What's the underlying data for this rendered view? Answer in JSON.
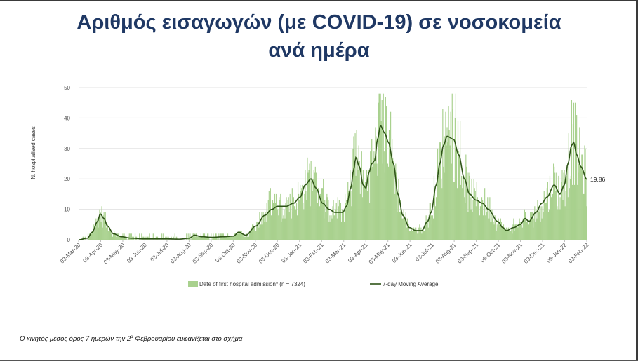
{
  "title_line1": "Αριθμός εισαγωγών (με COVID-19) σε νοσοκομεία",
  "title_line2": "ανά ημέρα",
  "footnote": {
    "before": "Ο κινητός μέσος όρος 7 ημερών την 2",
    "sup": "α",
    "after": " Φεβρουαρίου εμφανίζεται στο σχήμα"
  },
  "chart_data": {
    "type": "bar",
    "ylabel": "N. hospitalised cases",
    "xlabel": "",
    "ylim": [
      0,
      50
    ],
    "yticks": [
      0,
      10,
      20,
      30,
      40,
      50
    ],
    "x_start": "2020-03-03",
    "x_end": "2022-02-03",
    "xtick_labels": [
      "03-Mar-20",
      "03-Apr-20",
      "03-May-20",
      "03-Jun-20",
      "03-Jul-20",
      "03-Aug-20",
      "03-Sep-20",
      "03-Oct-20",
      "03-Nov-20",
      "03-Dec-20",
      "03-Jan-21",
      "03-Feb-21",
      "03-Mar-21",
      "03-Apr-21",
      "03-May-21",
      "03-Jun-21",
      "03-Jul-21",
      "03-Aug-21",
      "03-Sep-21",
      "03-Oct-21",
      "03-Nov-21",
      "03-Dec-21",
      "03-Jan-22",
      "03-Feb-22"
    ],
    "bar_series_name": "Date of first hospital admission* (n = 7324)",
    "line_series_name": "7-day Moving Average",
    "last_ma_label": "19.86",
    "bar_color": "#a9d18e",
    "line_color": "#2e5417",
    "moving_average_keypoints": [
      [
        "2020-03-03",
        0
      ],
      [
        "2020-03-15",
        0.5
      ],
      [
        "2020-03-22",
        2.5
      ],
      [
        "2020-03-29",
        6
      ],
      [
        "2020-04-02",
        8.5
      ],
      [
        "2020-04-07",
        7
      ],
      [
        "2020-04-12",
        4.5
      ],
      [
        "2020-04-20",
        2
      ],
      [
        "2020-05-01",
        1
      ],
      [
        "2020-05-15",
        0.5
      ],
      [
        "2020-06-01",
        0.3
      ],
      [
        "2020-07-01",
        0.3
      ],
      [
        "2020-07-20",
        0.2
      ],
      [
        "2020-08-03",
        0.5
      ],
      [
        "2020-08-10",
        1.5
      ],
      [
        "2020-08-20",
        1
      ],
      [
        "2020-09-03",
        0.8
      ],
      [
        "2020-09-20",
        1
      ],
      [
        "2020-10-03",
        1.2
      ],
      [
        "2020-10-10",
        2.5
      ],
      [
        "2020-10-20",
        1.5
      ],
      [
        "2020-11-03",
        4.5
      ],
      [
        "2020-11-15",
        8
      ],
      [
        "2020-11-25",
        10
      ],
      [
        "2020-12-03",
        11
      ],
      [
        "2020-12-15",
        11
      ],
      [
        "2020-12-25",
        12
      ],
      [
        "2021-01-03",
        14
      ],
      [
        "2021-01-10",
        18
      ],
      [
        "2021-01-18",
        20
      ],
      [
        "2021-01-25",
        17
      ],
      [
        "2021-02-03",
        12
      ],
      [
        "2021-02-12",
        10
      ],
      [
        "2021-02-20",
        9
      ],
      [
        "2021-03-03",
        9
      ],
      [
        "2021-03-08",
        11
      ],
      [
        "2021-03-14",
        17
      ],
      [
        "2021-03-18",
        23
      ],
      [
        "2021-03-21",
        27
      ],
      [
        "2021-03-26",
        24
      ],
      [
        "2021-03-31",
        18
      ],
      [
        "2021-04-04",
        17
      ],
      [
        "2021-04-08",
        22
      ],
      [
        "2021-04-12",
        25
      ],
      [
        "2021-04-16",
        26
      ],
      [
        "2021-04-20",
        33
      ],
      [
        "2021-04-24",
        37.5
      ],
      [
        "2021-04-30",
        35
      ],
      [
        "2021-05-05",
        32
      ],
      [
        "2021-05-12",
        25
      ],
      [
        "2021-05-18",
        15
      ],
      [
        "2021-05-25",
        8
      ],
      [
        "2021-06-03",
        4
      ],
      [
        "2021-06-12",
        3
      ],
      [
        "2021-06-20",
        3
      ],
      [
        "2021-06-28",
        6
      ],
      [
        "2021-07-03",
        9
      ],
      [
        "2021-07-10",
        18
      ],
      [
        "2021-07-15",
        25
      ],
      [
        "2021-07-20",
        31
      ],
      [
        "2021-07-25",
        34
      ],
      [
        "2021-08-03",
        33
      ],
      [
        "2021-08-10",
        28
      ],
      [
        "2021-08-18",
        20
      ],
      [
        "2021-08-25",
        15
      ],
      [
        "2021-09-03",
        13
      ],
      [
        "2021-09-12",
        12
      ],
      [
        "2021-09-20",
        10
      ],
      [
        "2021-10-03",
        6
      ],
      [
        "2021-10-10",
        4
      ],
      [
        "2021-10-15",
        3
      ],
      [
        "2021-10-25",
        4
      ],
      [
        "2021-11-03",
        5
      ],
      [
        "2021-11-10",
        7
      ],
      [
        "2021-11-15",
        6
      ],
      [
        "2021-11-25",
        9
      ],
      [
        "2021-12-03",
        12
      ],
      [
        "2021-12-10",
        14
      ],
      [
        "2021-12-20",
        18
      ],
      [
        "2021-12-28",
        15
      ],
      [
        "2022-01-03",
        18
      ],
      [
        "2022-01-08",
        25
      ],
      [
        "2022-01-13",
        31
      ],
      [
        "2022-01-16",
        32
      ],
      [
        "2022-01-20",
        28
      ],
      [
        "2022-01-26",
        24
      ],
      [
        "2022-02-03",
        19.86
      ]
    ]
  }
}
